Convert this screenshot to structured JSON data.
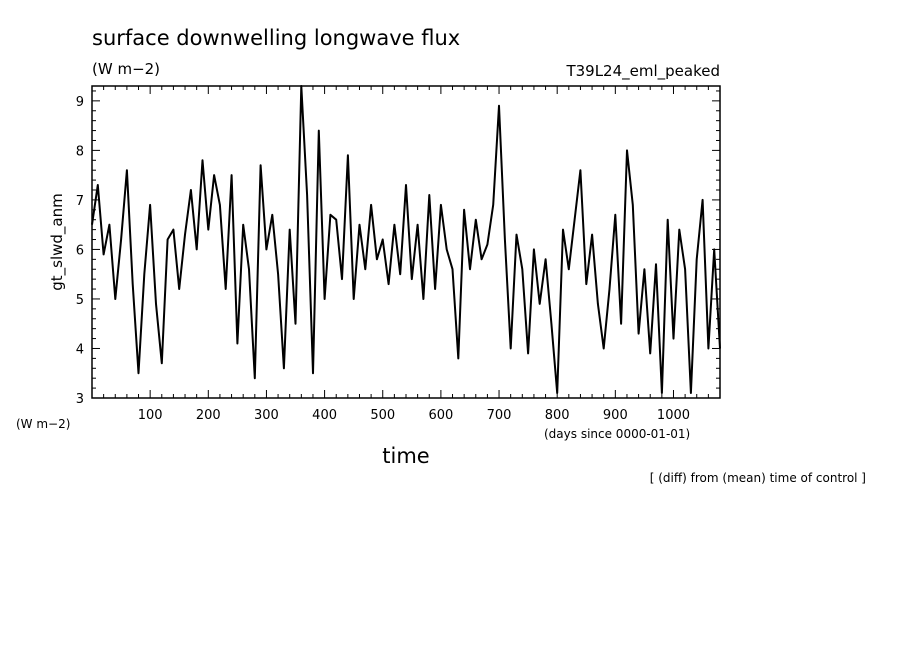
{
  "chart_data": {
    "type": "line",
    "title": "surface downwelling longwave flux",
    "units": "(W m−2)",
    "experiment": "T39L24_eml_peaked",
    "ylabel": "gt_slwd_anm",
    "yunits": "(W m−2)",
    "xlabel": "time",
    "xunits": "(days since 0000-01-01)",
    "footnote": "[ (diff) from (mean) time of control ]",
    "xlim": [
      0,
      1080
    ],
    "ylim": [
      3,
      9.3
    ],
    "x_ticks": [
      "100",
      "200",
      "300",
      "400",
      "500",
      "600",
      "700",
      "800",
      "900",
      "1000"
    ],
    "y_ticks": [
      "3",
      "4",
      "5",
      "6",
      "7",
      "8",
      "9"
    ],
    "series": [
      {
        "x": [
          0,
          10,
          20,
          30,
          40,
          50,
          60,
          70,
          80,
          90,
          100,
          110,
          120,
          130,
          140,
          150,
          160,
          170,
          180,
          190,
          200,
          210,
          220,
          230,
          240,
          250,
          260,
          270,
          280,
          290,
          300,
          310,
          320,
          330,
          340,
          350,
          360,
          370,
          380,
          390,
          400,
          410,
          420,
          430,
          440,
          450,
          460,
          470,
          480,
          490,
          500,
          510,
          520,
          530,
          540,
          550,
          560,
          570,
          580,
          590,
          600,
          610,
          620,
          630,
          640,
          650,
          660,
          670,
          680,
          690,
          700,
          710,
          720,
          730,
          740,
          750,
          760,
          770,
          780,
          790,
          800,
          810,
          820,
          830,
          840,
          850,
          860,
          870,
          880,
          890,
          900,
          910,
          920,
          930,
          940,
          950,
          960,
          970,
          980,
          990,
          1000,
          1010,
          1020,
          1030,
          1040,
          1050,
          1060,
          1070,
          1080
        ],
        "y": [
          6.5,
          7.3,
          5.9,
          6.5,
          5.0,
          6.2,
          7.6,
          5.3,
          3.5,
          5.5,
          6.9,
          4.9,
          3.7,
          6.2,
          6.4,
          5.2,
          6.3,
          7.2,
          6.0,
          7.8,
          6.4,
          7.5,
          6.9,
          5.2,
          7.5,
          4.1,
          6.5,
          5.6,
          3.4,
          7.7,
          6.0,
          6.7,
          5.5,
          3.6,
          6.4,
          4.5,
          9.3,
          7.1,
          3.5,
          8.4,
          5.0,
          6.7,
          6.6,
          5.4,
          7.9,
          5.0,
          6.5,
          5.6,
          6.9,
          5.8,
          6.2,
          5.3,
          6.5,
          5.5,
          7.3,
          5.4,
          6.5,
          5.0,
          7.1,
          5.2,
          6.9,
          6.0,
          5.6,
          3.8,
          6.8,
          5.6,
          6.6,
          5.8,
          6.1,
          6.9,
          8.9,
          6.2,
          4.0,
          6.3,
          5.6,
          3.9,
          6.0,
          4.9,
          5.8,
          4.5,
          3.1,
          6.4,
          5.6,
          6.6,
          7.6,
          5.3,
          6.3,
          4.9,
          4.0,
          5.2,
          6.7,
          4.5,
          8.0,
          6.9,
          4.3,
          5.6,
          3.9,
          5.7,
          3.1,
          6.6,
          4.2,
          6.4,
          5.6,
          3.1,
          5.8,
          7.0,
          4.0,
          6.0,
          4.0
        ]
      }
    ]
  }
}
